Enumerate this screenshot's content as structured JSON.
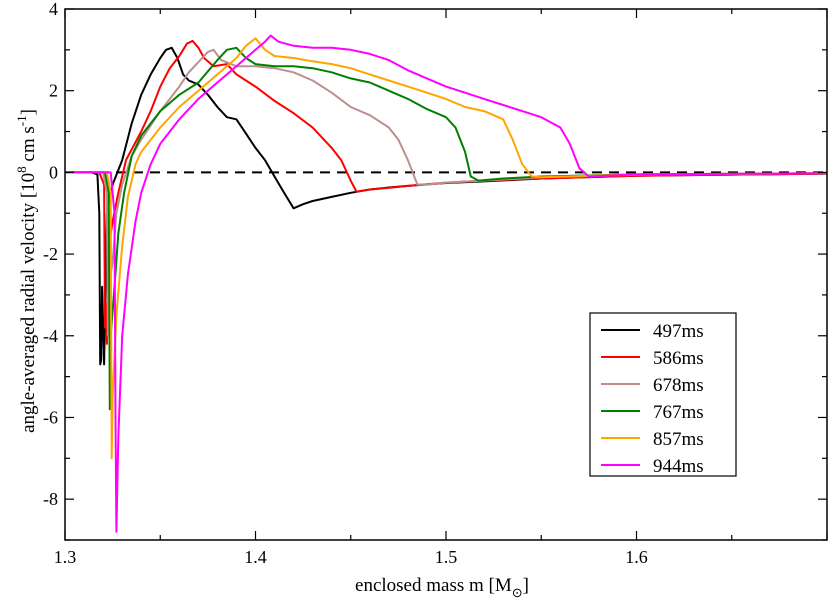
{
  "chart_data": {
    "type": "line",
    "xlabel": {
      "text": "enclosed mass m [M",
      "sub": "⊙",
      "close": "]"
    },
    "ylabel": {
      "text": "angle-averaged radial velocity [10",
      "sup8": "8",
      "mid": " cm s",
      "sup1": "-1",
      "close": "]"
    },
    "xlim": [
      1.3,
      1.7
    ],
    "ylim": [
      -9,
      4
    ],
    "xticks": [
      {
        "v": 1.3,
        "label": "1.3"
      },
      {
        "v": 1.4,
        "label": "1.4"
      },
      {
        "v": 1.5,
        "label": "1.5"
      },
      {
        "v": 1.6,
        "label": "1.6"
      }
    ],
    "yticks": [
      {
        "v": 4,
        "label": "4"
      },
      {
        "v": 2,
        "label": "2"
      },
      {
        "v": 0,
        "label": "0"
      },
      {
        "v": -2,
        "label": "-2"
      },
      {
        "v": -4,
        "label": "-4"
      },
      {
        "v": -6,
        "label": "-6"
      },
      {
        "v": -8,
        "label": "-8"
      }
    ],
    "grid": false,
    "reference_line": {
      "y": 0,
      "style": "dashed",
      "color": "#000000"
    },
    "legend_position": "lower-right",
    "series": [
      {
        "name": "497ms",
        "color": "#000000",
        "points": [
          [
            1.3,
            0
          ],
          [
            1.314,
            0
          ],
          [
            1.317,
            -0.05
          ],
          [
            1.318,
            -1.0
          ],
          [
            1.3185,
            -4.7
          ],
          [
            1.319,
            -4.6
          ],
          [
            1.3195,
            -2.8
          ],
          [
            1.3205,
            -4.7
          ],
          [
            1.322,
            -1.0
          ],
          [
            1.325,
            -0.3
          ],
          [
            1.33,
            0.3
          ],
          [
            1.335,
            1.2
          ],
          [
            1.34,
            1.9
          ],
          [
            1.345,
            2.4
          ],
          [
            1.35,
            2.8
          ],
          [
            1.353,
            3.0
          ],
          [
            1.356,
            3.05
          ],
          [
            1.359,
            2.8
          ],
          [
            1.362,
            2.4
          ],
          [
            1.365,
            2.25
          ],
          [
            1.37,
            2.15
          ],
          [
            1.375,
            1.9
          ],
          [
            1.38,
            1.6
          ],
          [
            1.385,
            1.35
          ],
          [
            1.39,
            1.3
          ],
          [
            1.395,
            0.95
          ],
          [
            1.4,
            0.6
          ],
          [
            1.405,
            0.3
          ],
          [
            1.41,
            -0.1
          ],
          [
            1.415,
            -0.5
          ],
          [
            1.42,
            -0.88
          ],
          [
            1.425,
            -0.78
          ],
          [
            1.43,
            -0.7
          ],
          [
            1.44,
            -0.6
          ],
          [
            1.45,
            -0.5
          ],
          [
            1.46,
            -0.42
          ],
          [
            1.47,
            -0.37
          ],
          [
            1.48,
            -0.33
          ],
          [
            1.5,
            -0.26
          ],
          [
            1.52,
            -0.22
          ],
          [
            1.55,
            -0.15
          ],
          [
            1.6,
            -0.08
          ],
          [
            1.7,
            -0.03
          ]
        ]
      },
      {
        "name": "586ms",
        "color": "#ff0000",
        "points": [
          [
            1.3,
            0
          ],
          [
            1.318,
            0
          ],
          [
            1.3205,
            -0.3
          ],
          [
            1.321,
            -3.8
          ],
          [
            1.3215,
            -3.2
          ],
          [
            1.322,
            -4.2
          ],
          [
            1.323,
            -1.8
          ],
          [
            1.325,
            -1.2
          ],
          [
            1.328,
            -0.5
          ],
          [
            1.332,
            0.3
          ],
          [
            1.34,
            1.0
          ],
          [
            1.345,
            1.5
          ],
          [
            1.35,
            2.1
          ],
          [
            1.355,
            2.55
          ],
          [
            1.36,
            2.85
          ],
          [
            1.364,
            3.15
          ],
          [
            1.367,
            3.22
          ],
          [
            1.37,
            3.05
          ],
          [
            1.373,
            2.8
          ],
          [
            1.378,
            2.6
          ],
          [
            1.385,
            2.65
          ],
          [
            1.39,
            2.4
          ],
          [
            1.4,
            2.1
          ],
          [
            1.41,
            1.75
          ],
          [
            1.42,
            1.45
          ],
          [
            1.43,
            1.1
          ],
          [
            1.44,
            0.6
          ],
          [
            1.445,
            0.3
          ],
          [
            1.45,
            -0.2
          ],
          [
            1.453,
            -0.47
          ],
          [
            1.46,
            -0.42
          ],
          [
            1.47,
            -0.38
          ],
          [
            1.48,
            -0.33
          ],
          [
            1.5,
            -0.25
          ],
          [
            1.52,
            -0.2
          ],
          [
            1.55,
            -0.15
          ],
          [
            1.6,
            -0.08
          ],
          [
            1.7,
            -0.03
          ]
        ]
      },
      {
        "name": "678ms",
        "color": "#bc8f8f",
        "points": [
          [
            1.3,
            0
          ],
          [
            1.32,
            0
          ],
          [
            1.322,
            -0.5
          ],
          [
            1.3225,
            -4.0
          ],
          [
            1.323,
            -2.8
          ],
          [
            1.325,
            -2.2
          ],
          [
            1.327,
            -1.0
          ],
          [
            1.33,
            -0.3
          ],
          [
            1.335,
            0.4
          ],
          [
            1.34,
            0.8
          ],
          [
            1.35,
            1.5
          ],
          [
            1.36,
            2.1
          ],
          [
            1.365,
            2.45
          ],
          [
            1.37,
            2.7
          ],
          [
            1.375,
            2.95
          ],
          [
            1.378,
            3.0
          ],
          [
            1.382,
            2.75
          ],
          [
            1.39,
            2.6
          ],
          [
            1.4,
            2.6
          ],
          [
            1.41,
            2.55
          ],
          [
            1.42,
            2.45
          ],
          [
            1.43,
            2.25
          ],
          [
            1.44,
            1.95
          ],
          [
            1.45,
            1.6
          ],
          [
            1.46,
            1.4
          ],
          [
            1.47,
            1.1
          ],
          [
            1.475,
            0.8
          ],
          [
            1.48,
            0.3
          ],
          [
            1.485,
            -0.3
          ],
          [
            1.49,
            -0.3
          ],
          [
            1.5,
            -0.25
          ],
          [
            1.52,
            -0.2
          ],
          [
            1.55,
            -0.12
          ],
          [
            1.6,
            -0.06
          ],
          [
            1.7,
            -0.02
          ]
        ]
      },
      {
        "name": "767ms",
        "color": "#008000",
        "points": [
          [
            1.3,
            0
          ],
          [
            1.321,
            0
          ],
          [
            1.323,
            -0.5
          ],
          [
            1.3235,
            -5.8
          ],
          [
            1.324,
            -4.0
          ],
          [
            1.326,
            -2.8
          ],
          [
            1.328,
            -1.5
          ],
          [
            1.331,
            -0.5
          ],
          [
            1.335,
            0.4
          ],
          [
            1.34,
            0.9
          ],
          [
            1.35,
            1.5
          ],
          [
            1.36,
            1.9
          ],
          [
            1.37,
            2.2
          ],
          [
            1.38,
            2.75
          ],
          [
            1.385,
            3.0
          ],
          [
            1.39,
            3.05
          ],
          [
            1.395,
            2.8
          ],
          [
            1.4,
            2.65
          ],
          [
            1.41,
            2.6
          ],
          [
            1.42,
            2.6
          ],
          [
            1.43,
            2.55
          ],
          [
            1.44,
            2.45
          ],
          [
            1.45,
            2.3
          ],
          [
            1.46,
            2.2
          ],
          [
            1.47,
            2.0
          ],
          [
            1.48,
            1.8
          ],
          [
            1.49,
            1.55
          ],
          [
            1.5,
            1.35
          ],
          [
            1.505,
            1.1
          ],
          [
            1.51,
            0.5
          ],
          [
            1.513,
            -0.1
          ],
          [
            1.517,
            -0.2
          ],
          [
            1.53,
            -0.15
          ],
          [
            1.55,
            -0.1
          ],
          [
            1.6,
            -0.05
          ],
          [
            1.7,
            -0.02
          ]
        ]
      },
      {
        "name": "857ms",
        "color": "#ffa500",
        "points": [
          [
            1.3,
            0
          ],
          [
            1.322,
            0
          ],
          [
            1.324,
            -0.5
          ],
          [
            1.3245,
            -7.0
          ],
          [
            1.325,
            -5.5
          ],
          [
            1.327,
            -3.5
          ],
          [
            1.33,
            -1.8
          ],
          [
            1.333,
            -0.6
          ],
          [
            1.337,
            0.2
          ],
          [
            1.34,
            0.5
          ],
          [
            1.35,
            1.1
          ],
          [
            1.36,
            1.6
          ],
          [
            1.37,
            2.0
          ],
          [
            1.38,
            2.4
          ],
          [
            1.39,
            2.8
          ],
          [
            1.395,
            3.1
          ],
          [
            1.4,
            3.28
          ],
          [
            1.405,
            3.0
          ],
          [
            1.41,
            2.85
          ],
          [
            1.42,
            2.8
          ],
          [
            1.43,
            2.72
          ],
          [
            1.44,
            2.65
          ],
          [
            1.45,
            2.55
          ],
          [
            1.46,
            2.4
          ],
          [
            1.47,
            2.25
          ],
          [
            1.48,
            2.1
          ],
          [
            1.49,
            1.95
          ],
          [
            1.5,
            1.8
          ],
          [
            1.51,
            1.6
          ],
          [
            1.52,
            1.5
          ],
          [
            1.53,
            1.3
          ],
          [
            1.535,
            0.8
          ],
          [
            1.54,
            0.2
          ],
          [
            1.545,
            -0.1
          ],
          [
            1.55,
            -0.12
          ],
          [
            1.6,
            -0.05
          ],
          [
            1.7,
            -0.02
          ]
        ]
      },
      {
        "name": "944ms",
        "color": "#ff00ff",
        "points": [
          [
            1.3,
            0
          ],
          [
            1.324,
            0
          ],
          [
            1.326,
            -1.0
          ],
          [
            1.3265,
            -6.0
          ],
          [
            1.327,
            -8.8
          ],
          [
            1.328,
            -6.5
          ],
          [
            1.33,
            -4.0
          ],
          [
            1.333,
            -2.5
          ],
          [
            1.337,
            -1.2
          ],
          [
            1.34,
            -0.5
          ],
          [
            1.345,
            0.2
          ],
          [
            1.35,
            0.7
          ],
          [
            1.36,
            1.3
          ],
          [
            1.37,
            1.8
          ],
          [
            1.38,
            2.2
          ],
          [
            1.39,
            2.6
          ],
          [
            1.4,
            3.0
          ],
          [
            1.405,
            3.2
          ],
          [
            1.408,
            3.35
          ],
          [
            1.412,
            3.2
          ],
          [
            1.42,
            3.1
          ],
          [
            1.43,
            3.05
          ],
          [
            1.44,
            3.05
          ],
          [
            1.45,
            3.0
          ],
          [
            1.46,
            2.9
          ],
          [
            1.47,
            2.75
          ],
          [
            1.48,
            2.5
          ],
          [
            1.49,
            2.3
          ],
          [
            1.5,
            2.1
          ],
          [
            1.51,
            1.95
          ],
          [
            1.52,
            1.8
          ],
          [
            1.53,
            1.65
          ],
          [
            1.54,
            1.5
          ],
          [
            1.55,
            1.35
          ],
          [
            1.56,
            1.1
          ],
          [
            1.565,
            0.7
          ],
          [
            1.57,
            0.1
          ],
          [
            1.575,
            -0.1
          ],
          [
            1.6,
            -0.05
          ],
          [
            1.7,
            -0.02
          ]
        ]
      }
    ]
  }
}
